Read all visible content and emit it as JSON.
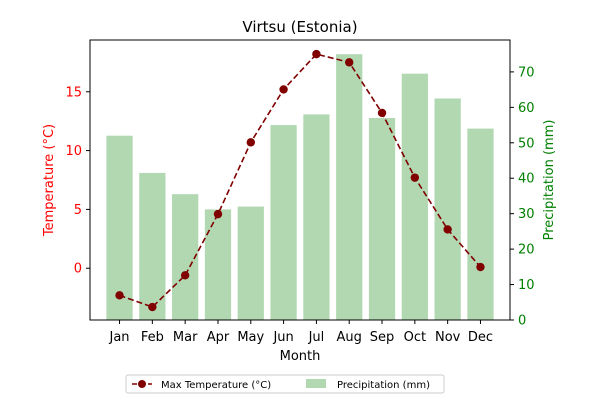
{
  "chart_data": {
    "type": "bar",
    "title": "Virtsu (Estonia)",
    "xlabel": "Month",
    "categories": [
      "Jan",
      "Feb",
      "Mar",
      "Apr",
      "May",
      "Jun",
      "Jul",
      "Aug",
      "Sep",
      "Oct",
      "Nov",
      "Dec"
    ],
    "series": [
      {
        "name": "Max Temperature (°C)",
        "chart": "line",
        "axis": "left",
        "color": "#800000",
        "values": [
          -2.3,
          -3.3,
          -0.6,
          4.6,
          10.7,
          15.2,
          18.2,
          17.5,
          13.2,
          7.7,
          3.3,
          0.1
        ]
      },
      {
        "name": "Precipitation (mm)",
        "chart": "bar",
        "axis": "right",
        "color": "#b2d8b2",
        "values": [
          52,
          41.5,
          35.5,
          31.2,
          32,
          55,
          58,
          75,
          57,
          69.5,
          62.5,
          54
        ]
      }
    ],
    "y_left": {
      "label": "Temperature (°C)",
      "color": "#ff0000",
      "ylim": [
        -4.4,
        19.4
      ],
      "ticks": [
        0,
        5,
        10,
        15
      ]
    },
    "y_right": {
      "label": "Precipitation (mm)",
      "color": "#008000",
      "ylim": [
        0,
        79
      ],
      "ticks": [
        0,
        10,
        20,
        30,
        40,
        50,
        60,
        70
      ]
    },
    "grid": false,
    "legend_position": "bottom-center"
  }
}
